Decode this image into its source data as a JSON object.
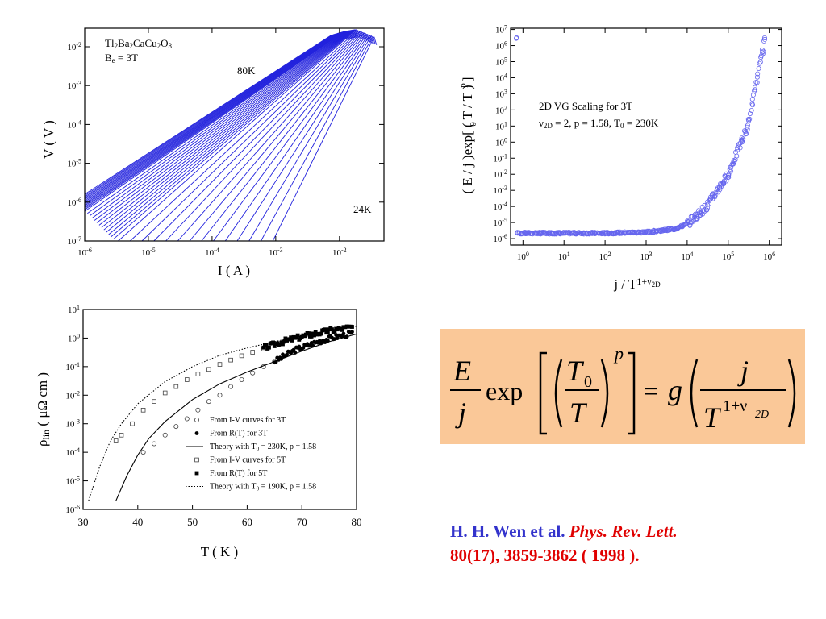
{
  "chart_data": [
    {
      "id": "iv",
      "type": "line",
      "xlabel": "I ( A )",
      "ylabel": "V ( V )",
      "x_scale": "log",
      "y_scale": "log",
      "xlim": [
        1e-06,
        0.05
      ],
      "ylim": [
        1e-07,
        0.03
      ],
      "xticks": [
        {
          "v": 1e-06,
          "m": "10",
          "e": "-6"
        },
        {
          "v": 1e-05,
          "m": "10",
          "e": "-5"
        },
        {
          "v": 0.0001,
          "m": "10",
          "e": "-4"
        },
        {
          "v": 0.001,
          "m": "10",
          "e": "-3"
        },
        {
          "v": 0.01,
          "m": "10",
          "e": "-2"
        }
      ],
      "yticks": [
        {
          "v": 1e-07,
          "m": "10",
          "e": "-7"
        },
        {
          "v": 1e-06,
          "m": "10",
          "e": "-6"
        },
        {
          "v": 1e-05,
          "m": "10",
          "e": "-5"
        },
        {
          "v": 0.0001,
          "m": "10",
          "e": "-4"
        },
        {
          "v": 0.001,
          "m": "10",
          "e": "-3"
        },
        {
          "v": 0.01,
          "m": "10",
          "e": "-2"
        }
      ],
      "line_color": "#2222dd",
      "curves": {
        "count": 40,
        "temperature_high": "80K",
        "temperature_low": "24K"
      },
      "sample_lines": [
        {
          "x": [
            1e-06,
            0.0075
          ],
          "y": [
            1.6e-06,
            0.02
          ]
        },
        {
          "x": [
            1e-06,
            0.012
          ],
          "y": [
            6e-07,
            0.025
          ]
        },
        {
          "x": [
            3e-06,
            0.018
          ],
          "y": [
            1e-07,
            0.028
          ]
        },
        {
          "x": [
            0.0009,
            0.035
          ],
          "y": [
            1e-07,
            0.018
          ]
        }
      ],
      "annotations": {
        "material": {
          "parts": [
            {
              "t": "Tl"
            },
            {
              "t": "2",
              "sub": true
            },
            {
              "t": "Ba"
            },
            {
              "t": "2",
              "sub": true
            },
            {
              "t": "CaCu"
            },
            {
              "t": "2",
              "sub": true
            },
            {
              "t": "O"
            },
            {
              "t": "8",
              "sub": true
            }
          ]
        },
        "field": {
          "parts": [
            {
              "t": "B"
            },
            {
              "t": "e",
              "sub": true
            },
            {
              "t": " = 3T"
            }
          ]
        },
        "high": "80K",
        "low": "24K"
      }
    },
    {
      "id": "scaling",
      "type": "scatter",
      "xlabel_parts": [
        {
          "t": "j / T"
        },
        {
          "t": "1+ν",
          "sup": true
        },
        {
          "t": "2D",
          "supsub": true
        }
      ],
      "ylabel": "( E / j )exp[ ( T  / T )  ]",
      "x_scale": "log",
      "y_scale": "log",
      "xlim": [
        0.5,
        2000000.0
      ],
      "ylim": [
        4e-07,
        12000000.0
      ],
      "xticks": [
        {
          "v": 1,
          "m": "10",
          "e": "0"
        },
        {
          "v": 10,
          "m": "10",
          "e": "1"
        },
        {
          "v": 100,
          "m": "10",
          "e": "2"
        },
        {
          "v": 1000,
          "m": "10",
          "e": "3"
        },
        {
          "v": 10000.0,
          "m": "10",
          "e": "4"
        },
        {
          "v": 100000.0,
          "m": "10",
          "e": "5"
        },
        {
          "v": 1000000.0,
          "m": "10",
          "e": "6"
        }
      ],
      "yticks_exponents": [
        7,
        6,
        5,
        4,
        3,
        2,
        1,
        0,
        -1,
        -2,
        -3,
        -4,
        -5,
        -6
      ],
      "marker_color": "#6666ee",
      "trend": {
        "x": [
          0.7,
          10,
          100,
          1000,
          5000,
          10000,
          30000,
          100000,
          300000,
          800000
        ],
        "y": [
          2.2e-06,
          2.2e-06,
          2.2e-06,
          2.5e-06,
          4e-06,
          8e-06,
          0.0001,
          0.01,
          10,
          3000000.0
        ]
      },
      "annotation_title": "2D VG Scaling for 3T",
      "annotation_params": {
        "parts": [
          {
            "t": "ν"
          },
          {
            "t": "2D",
            "sub": true
          },
          {
            "t": " = 2, p = 1.58, T"
          },
          {
            "t": "0",
            "sub": true
          },
          {
            "t": " = 230K"
          }
        ]
      }
    },
    {
      "id": "rho",
      "type": "scatter",
      "xlabel": "T ( K )",
      "ylabel_parts": [
        {
          "t": "ρ"
        },
        {
          "t": "lin",
          "sub": true
        },
        {
          "t": " ( μΩ cm )"
        }
      ],
      "x_scale": "linear",
      "y_scale": "log",
      "xlim": [
        30,
        80
      ],
      "ylim": [
        1e-06,
        10
      ],
      "xticks": [
        30,
        40,
        50,
        60,
        70,
        80
      ],
      "yticks_exponents": [
        1,
        0,
        -1,
        -2,
        -3,
        -4,
        -5,
        -6
      ],
      "series": [
        {
          "name": "From I-V curves for 3T",
          "marker": "open-circle",
          "x": [
            41,
            43,
            45,
            47,
            49,
            51,
            53,
            55,
            57,
            59,
            61,
            63,
            65
          ],
          "y": [
            0.0001,
            0.0002,
            0.0004,
            0.0008,
            0.0015,
            0.003,
            0.006,
            0.01,
            0.02,
            0.035,
            0.06,
            0.1,
            0.15
          ]
        },
        {
          "name": "From R(T) for 3T",
          "marker": "filled-circle",
          "x": [
            65,
            67,
            69,
            71,
            73,
            75,
            77,
            79.5
          ],
          "y": [
            0.15,
            0.25,
            0.4,
            0.55,
            0.75,
            0.95,
            1.2,
            1.5
          ]
        },
        {
          "name": "Theory with T₀ = 230K, p = 1.58",
          "marker": "solid-line",
          "x": [
            36,
            38,
            40,
            42,
            45,
            50,
            55,
            60,
            65,
            70,
            75,
            80
          ],
          "y": [
            2e-06,
            1.5e-05,
            8e-05,
            0.0003,
            0.0012,
            0.007,
            0.025,
            0.065,
            0.15,
            0.35,
            0.75,
            1.4
          ]
        },
        {
          "name": "From I-V curves for 5T",
          "marker": "open-square",
          "x": [
            36,
            37,
            39,
            41,
            43,
            45,
            47,
            49,
            51,
            53,
            55,
            57,
            59,
            61,
            63
          ],
          "y": [
            0.00025,
            0.0004,
            0.001,
            0.003,
            0.006,
            0.012,
            0.02,
            0.035,
            0.055,
            0.08,
            0.12,
            0.17,
            0.24,
            0.32,
            0.42
          ]
        },
        {
          "name": "From R(T) for 5T",
          "marker": "filled-square",
          "x": [
            63,
            65,
            67,
            69,
            71,
            73,
            75,
            77,
            79.5
          ],
          "y": [
            0.45,
            0.6,
            0.8,
            1.0,
            1.25,
            1.5,
            1.8,
            2.1,
            2.5
          ]
        },
        {
          "name": "Theory with T₀ = 190K, p = 1.58",
          "marker": "dotted-line",
          "x": [
            31,
            33,
            35,
            37,
            40,
            45,
            50,
            55,
            60,
            65,
            70,
            75,
            80
          ],
          "y": [
            2e-06,
            3e-05,
            0.00025,
            0.001,
            0.005,
            0.03,
            0.1,
            0.25,
            0.45,
            0.75,
            1.2,
            1.8,
            2.6
          ]
        }
      ],
      "legend_labels": [
        {
          "parts": [
            {
              "t": "From I-V curves for 3T"
            }
          ]
        },
        {
          "parts": [
            {
              "t": "From R(T) for 3T"
            }
          ]
        },
        {
          "parts": [
            {
              "t": "Theory with T"
            },
            {
              "t": "0",
              "sub": true
            },
            {
              "t": " = 230K, p = 1.58"
            }
          ]
        },
        {
          "parts": [
            {
              "t": "From I-V curves for 5T"
            }
          ]
        },
        {
          "parts": [
            {
              "t": "From R(T) for 5T"
            }
          ]
        },
        {
          "parts": [
            {
              "t": "Theory with T"
            },
            {
              "t": "0",
              "sub": true
            },
            {
              "t": " = 190K, p = 1.58"
            }
          ]
        }
      ]
    }
  ],
  "formula": {
    "E": "E",
    "j": "j",
    "exp": "exp",
    "T0": "T",
    "T0_sub": "0",
    "T": "T",
    "p": "p",
    "equals": "=",
    "g": "g",
    "j2": "j",
    "T2": "T",
    "exp_sup": "1+ν",
    "exp_sub": "2D",
    "bg_color": "#fac898"
  },
  "citation": {
    "authors": "H. H. Wen et al.",
    "journal": "Phys. Rev. Lett.",
    "reference": "80(17), 3859-3862 ( 1998 )."
  }
}
